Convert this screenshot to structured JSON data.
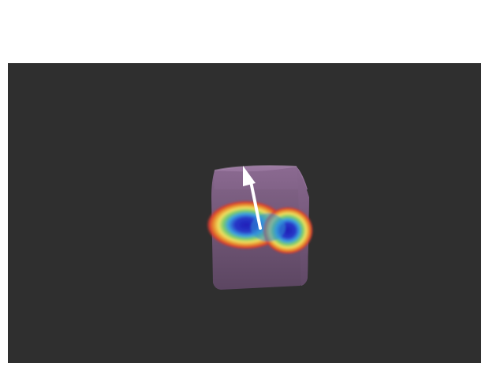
{
  "scene": {
    "background_color": "#2f2f2f",
    "object": "cube",
    "object_color": "#7a5a7e",
    "overlay": "heatmap",
    "heatmap_blobs": 2,
    "heatmap_colors": [
      "#d94030",
      "#e8a040",
      "#f0e060",
      "#70c870",
      "#40a0e0",
      "#2030c0"
    ],
    "arrow_icon": "arrow-up-icon",
    "arrow_color": "#ffffff"
  }
}
